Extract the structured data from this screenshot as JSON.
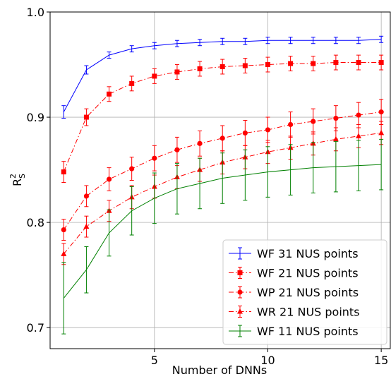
{
  "chart_data": {
    "type": "line",
    "xlabel": "Number of DNNs",
    "ylabel_main": "R",
    "ylabel_sub": "S",
    "ylabel_sup": "2",
    "xlim": [
      0.4,
      15.4
    ],
    "ylim": [
      0.68,
      1.0
    ],
    "xticks": [
      5,
      10,
      15
    ],
    "xtick_labels": [
      "5",
      "10",
      "15"
    ],
    "yticks": [
      0.7,
      0.8,
      0.9,
      1.0
    ],
    "ytick_labels": [
      "0.7",
      "0.8",
      "0.9",
      "1.0"
    ],
    "grid": true,
    "legend_position": "bottom-right",
    "x": [
      1,
      2,
      3,
      4,
      5,
      6,
      7,
      8,
      9,
      10,
      11,
      12,
      13,
      14,
      15
    ],
    "series": [
      {
        "name": "WF 31 NUS points",
        "color": "#0000ff",
        "linestyle": "solid",
        "marker": "none",
        "values": [
          0.905,
          0.945,
          0.959,
          0.965,
          0.968,
          0.97,
          0.971,
          0.972,
          0.972,
          0.973,
          0.973,
          0.973,
          0.973,
          0.973,
          0.974
        ],
        "errors": [
          0.006,
          0.004,
          0.003,
          0.003,
          0.003,
          0.003,
          0.003,
          0.003,
          0.003,
          0.003,
          0.003,
          0.003,
          0.003,
          0.003,
          0.003
        ]
      },
      {
        "name": "WF 21 NUS points",
        "color": "#ff0000",
        "linestyle": "dashdot",
        "marker": "square",
        "values": [
          0.848,
          0.9,
          0.922,
          0.932,
          0.939,
          0.943,
          0.946,
          0.948,
          0.949,
          0.95,
          0.951,
          0.951,
          0.952,
          0.952,
          0.952
        ],
        "errors": [
          0.01,
          0.008,
          0.007,
          0.007,
          0.007,
          0.007,
          0.007,
          0.007,
          0.007,
          0.007,
          0.007,
          0.007,
          0.007,
          0.007,
          0.007
        ]
      },
      {
        "name": "WP 21 NUS points",
        "color": "#ff0000",
        "linestyle": "dashdot",
        "marker": "circle",
        "values": [
          0.793,
          0.825,
          0.841,
          0.851,
          0.861,
          0.869,
          0.875,
          0.88,
          0.885,
          0.888,
          0.893,
          0.896,
          0.899,
          0.902,
          0.905
        ],
        "errors": [
          0.01,
          0.01,
          0.011,
          0.011,
          0.012,
          0.012,
          0.012,
          0.012,
          0.012,
          0.012,
          0.012,
          0.012,
          0.012,
          0.012,
          0.012
        ]
      },
      {
        "name": "WR 21 NUS points",
        "color": "#ff0000",
        "linestyle": "dashdot",
        "marker": "triangle",
        "values": [
          0.77,
          0.796,
          0.811,
          0.824,
          0.834,
          0.843,
          0.85,
          0.857,
          0.862,
          0.867,
          0.871,
          0.875,
          0.879,
          0.882,
          0.885
        ],
        "errors": [
          0.01,
          0.01,
          0.01,
          0.011,
          0.011,
          0.011,
          0.011,
          0.011,
          0.011,
          0.011,
          0.011,
          0.011,
          0.011,
          0.011,
          0.011
        ]
      },
      {
        "name": "WF 11 NUS points",
        "color": "#008000",
        "linestyle": "solid",
        "marker": "none",
        "values": [
          0.728,
          0.755,
          0.79,
          0.811,
          0.823,
          0.832,
          0.837,
          0.842,
          0.845,
          0.848,
          0.85,
          0.852,
          0.853,
          0.854,
          0.855
        ],
        "errors": [
          0.034,
          0.022,
          0.022,
          0.023,
          0.024,
          0.024,
          0.024,
          0.024,
          0.024,
          0.024,
          0.024,
          0.024,
          0.024,
          0.024,
          0.024
        ]
      }
    ]
  }
}
